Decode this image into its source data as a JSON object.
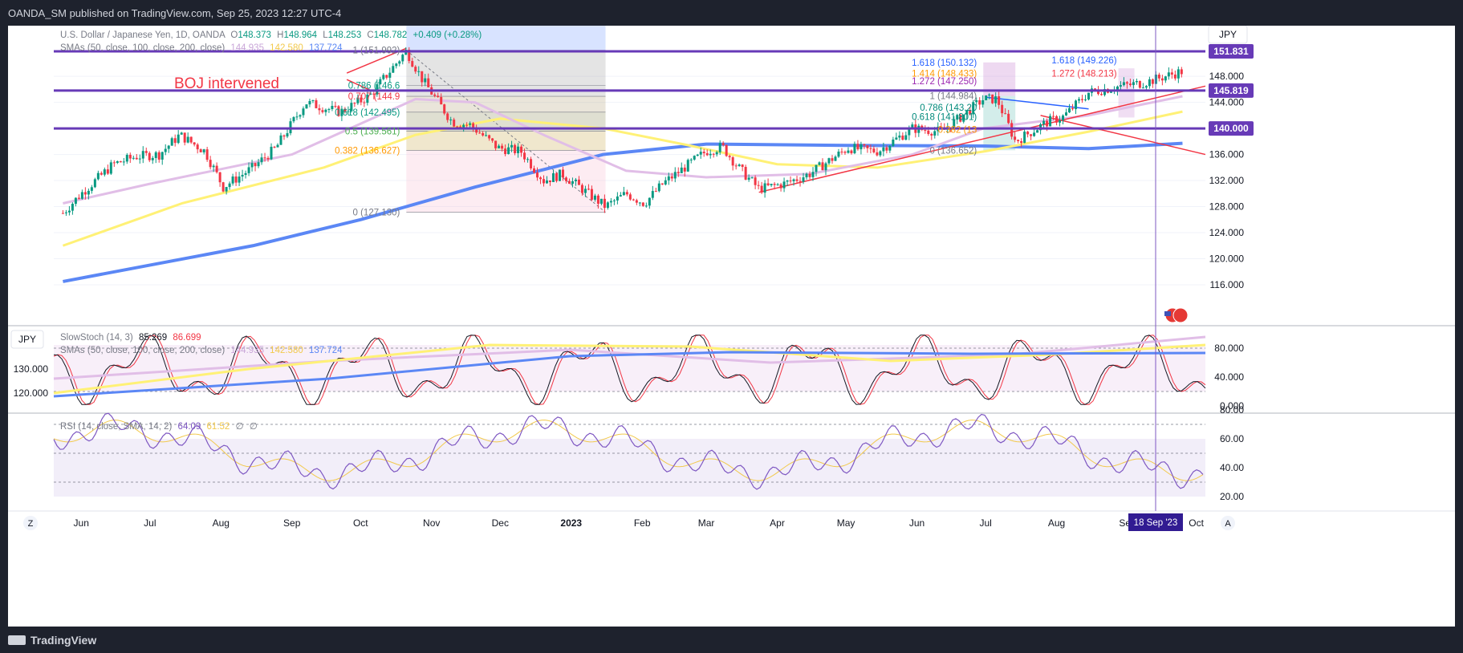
{
  "header": {
    "published": "OANDA_SM published on TradingView.com, Sep 25, 2023 12:27 UTC-4"
  },
  "footer": {
    "brand": "TradingView"
  },
  "legend": {
    "symbol": "U.S. Dollar / Japanese Yen, 1D, OANDA",
    "o_label": "O",
    "o": "148.373",
    "h_label": "H",
    "h": "148.964",
    "l_label": "L",
    "l": "148.253",
    "c_label": "C",
    "c": "148.782",
    "change": "+0.409 (+0.28%)",
    "sma_title": "SMAs (50, close, 100, close, 200, close)",
    "sma50": "144.935",
    "sma100": "142.580",
    "sma200": "137.724"
  },
  "currency_button": "JPY",
  "annotation": {
    "text": "BOJ intervened"
  },
  "price_badges": [
    "151.831",
    "145.819",
    "140.000"
  ],
  "price_axis": [
    "148.000",
    "144.000",
    "140.000",
    "136.000",
    "132.000",
    "128.000",
    "124.000",
    "120.000",
    "116.000"
  ],
  "time_axis": [
    "Jun",
    "Jul",
    "Aug",
    "Sep",
    "Oct",
    "Nov",
    "Dec",
    "2023",
    "Feb",
    "Mar",
    "Apr",
    "May",
    "Jun",
    "Jul",
    "Aug",
    "Sep",
    "Oct"
  ],
  "cursor_date": "18 Sep '23",
  "fib1": {
    "levels": [
      {
        "label": "1 (151.992)",
        "price": 151.992
      },
      {
        "label": "0.786 (146.6",
        "price": 146.612
      },
      {
        "label": "0.707 (144.9",
        "price": 144.929
      },
      {
        "label": "0.618 (142.495)",
        "price": 142.495
      },
      {
        "label": "0.5 (139.561)",
        "price": 139.561
      },
      {
        "label": "0.382 (136.627)",
        "price": 136.627
      },
      {
        "label": "0 (127.130)",
        "price": 127.13
      }
    ]
  },
  "fib2": {
    "levels": [
      {
        "label": "1.618 (150.132)",
        "price": 150.132
      },
      {
        "label": "1.414 (148.433)",
        "price": 148.433
      },
      {
        "label": "1.272 (147.250)",
        "price": 147.25
      },
      {
        "label": "1 (144.984)",
        "price": 144.984
      },
      {
        "label": "0.786 (143.20",
        "price": 143.202
      },
      {
        "label": "0.618 (141.801)",
        "price": 141.801
      },
      {
        "label": "0.382 (13",
        "price": 139.835
      },
      {
        "label": "0 (136.652)",
        "price": 136.652
      }
    ]
  },
  "fib3": {
    "levels": [
      {
        "label": "1.618 (149.226)",
        "price": 149.226
      },
      {
        "label": "1.272 (148.213)",
        "price": 148.213
      }
    ]
  },
  "stoch": {
    "currency": "JPY",
    "title": "SlowStoch (14, 3)",
    "k": "85.269",
    "d": "86.699",
    "sma_title": "SMAs (50, close, 100, close, 200, close)",
    "sma50": "144.935",
    "sma100": "142.580",
    "sma200": "137.724",
    "left_axis": [
      "130.000",
      "120.000"
    ],
    "right_axis": [
      "80.000",
      "40.000",
      "0.000"
    ]
  },
  "rsi": {
    "title": "RSI (14, close, SMA, 14, 2)",
    "rsi": "64.09",
    "sma": "61.52",
    "e1": "∅",
    "e2": "∅",
    "right_axis": [
      "80.00",
      "60.00",
      "40.00",
      "20.00"
    ]
  },
  "bottom_left": "Z",
  "bottom_right": "A",
  "colors": {
    "candle_up": "#089981",
    "candle_down": "#f23645",
    "sma50": "#e1bee7",
    "sma100": "#fff176",
    "sma200": "#5b87f5",
    "hline": "#673ab7",
    "trend": "#f23645",
    "cursor": "#7e57c2"
  },
  "chart_data": {
    "type": "candlestick",
    "title": "U.S. Dollar / Japanese Yen, 1D, OANDA",
    "x_range": [
      "2022-05",
      "2023-10"
    ],
    "ylim": [
      114,
      154
    ],
    "close_path": [
      [
        "2022-05-24",
        127.0
      ],
      [
        "2022-06-01",
        130.0
      ],
      [
        "2022-06-15",
        134.5
      ],
      [
        "2022-06-25",
        135.7
      ],
      [
        "2022-07-05",
        136.0
      ],
      [
        "2022-07-14",
        139.0
      ],
      [
        "2022-07-25",
        136.5
      ],
      [
        "2022-08-02",
        131.0
      ],
      [
        "2022-08-15",
        134.0
      ],
      [
        "2022-08-25",
        137.0
      ],
      [
        "2022-09-07",
        144.0
      ],
      [
        "2022-09-22",
        142.5
      ],
      [
        "2022-10-05",
        145.0
      ],
      [
        "2022-10-21",
        151.9
      ],
      [
        "2022-10-28",
        147.5
      ],
      [
        "2022-11-10",
        141.0
      ],
      [
        "2022-11-18",
        140.5
      ],
      [
        "2022-11-30",
        137.0
      ],
      [
        "2022-12-10",
        136.5
      ],
      [
        "2022-12-20",
        132.0
      ],
      [
        "2022-12-28",
        133.0
      ],
      [
        "2023-01-16",
        128.0
      ],
      [
        "2023-01-25",
        130.0
      ],
      [
        "2023-02-02",
        128.5
      ],
      [
        "2023-02-10",
        131.5
      ],
      [
        "2023-03-01",
        136.5
      ],
      [
        "2023-03-08",
        137.2
      ],
      [
        "2023-03-15",
        134.0
      ],
      [
        "2023-03-24",
        130.7
      ],
      [
        "2023-04-04",
        131.5
      ],
      [
        "2023-04-15",
        133.0
      ],
      [
        "2023-05-02",
        137.0
      ],
      [
        "2023-05-15",
        136.5
      ],
      [
        "2023-05-30",
        140.0
      ],
      [
        "2023-06-12",
        139.5
      ],
      [
        "2023-06-30",
        144.5
      ],
      [
        "2023-07-06",
        144.5
      ],
      [
        "2023-07-14",
        138.0
      ],
      [
        "2023-07-28",
        141.0
      ],
      [
        "2023-08-04",
        141.8
      ],
      [
        "2023-08-15",
        145.5
      ],
      [
        "2023-08-29",
        146.5
      ],
      [
        "2023-09-08",
        147.0
      ],
      [
        "2023-09-25",
        148.782
      ]
    ],
    "sma50": [
      [
        "2022-05-24",
        128.5
      ],
      [
        "2022-07-01",
        131.5
      ],
      [
        "2022-09-01",
        136.0
      ],
      [
        "2022-10-25",
        144.5
      ],
      [
        "2022-11-20",
        144.0
      ],
      [
        "2022-12-20",
        139.0
      ],
      [
        "2023-01-25",
        133.5
      ],
      [
        "2023-03-01",
        132.5
      ],
      [
        "2023-04-15",
        133.0
      ],
      [
        "2023-05-30",
        136.0
      ],
      [
        "2023-06-30",
        140.0
      ],
      [
        "2023-08-15",
        142.0
      ],
      [
        "2023-09-25",
        144.935
      ]
    ],
    "sma100": [
      [
        "2022-05-24",
        122.0
      ],
      [
        "2022-07-15",
        128.5
      ],
      [
        "2022-09-15",
        134.0
      ],
      [
        "2022-10-25",
        139.0
      ],
      [
        "2022-12-01",
        141.5
      ],
      [
        "2023-01-15",
        140.0
      ],
      [
        "2023-02-20",
        137.5
      ],
      [
        "2023-04-01",
        134.5
      ],
      [
        "2023-05-15",
        134.0
      ],
      [
        "2023-07-01",
        136.5
      ],
      [
        "2023-08-15",
        139.5
      ],
      [
        "2023-09-25",
        142.58
      ]
    ],
    "sma200": [
      [
        "2022-05-24",
        116.5
      ],
      [
        "2022-08-15",
        122.0
      ],
      [
        "2022-10-01",
        126.0
      ],
      [
        "2022-11-20",
        131.0
      ],
      [
        "2023-01-15",
        136.0
      ],
      [
        "2023-03-01",
        137.6
      ],
      [
        "2023-05-01",
        137.4
      ],
      [
        "2023-07-01",
        137.3
      ],
      [
        "2023-08-15",
        136.9
      ],
      [
        "2023-09-25",
        137.724
      ]
    ],
    "levels": [
      151.831,
      145.819,
      140.0
    ],
    "current_price": 148.782
  }
}
